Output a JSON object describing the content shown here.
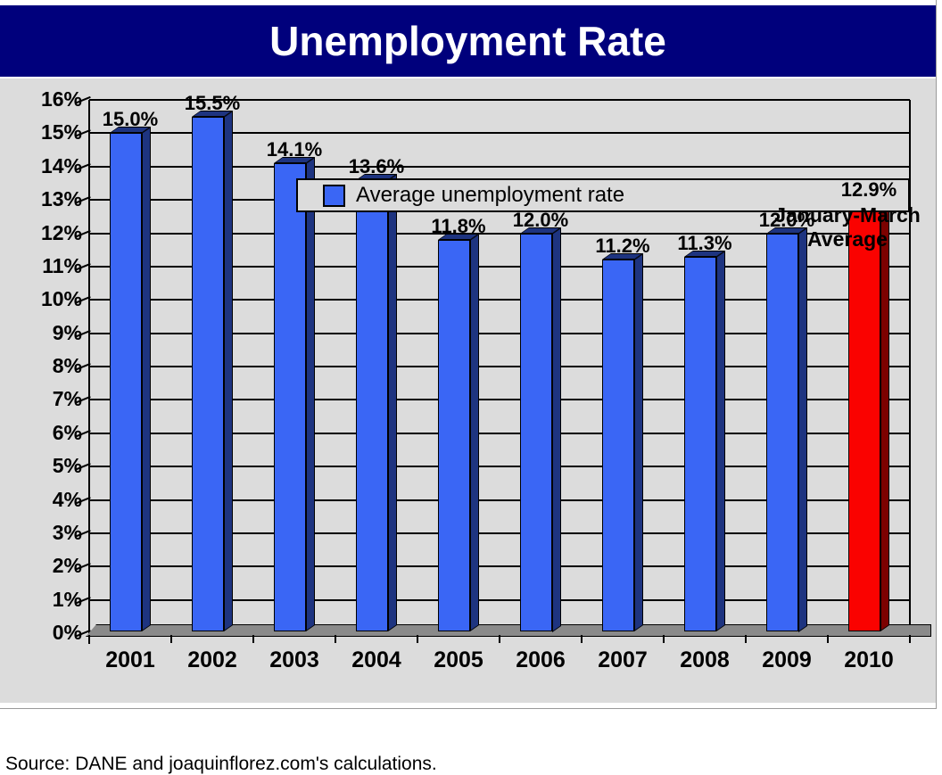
{
  "window": {
    "title": "Unemployment Rate"
  },
  "chart_data": {
    "type": "bar",
    "title": "Unemployment Rate",
    "categories": [
      "2001",
      "2002",
      "2003",
      "2004",
      "2005",
      "2006",
      "2007",
      "2008",
      "2009",
      "2010"
    ],
    "values": [
      15.0,
      15.5,
      14.1,
      13.6,
      11.8,
      12.0,
      11.2,
      11.3,
      12.0,
      12.9
    ],
    "value_labels": [
      "15.0%",
      "15.5%",
      "14.1%",
      "13.6%",
      "11.8%",
      "12.0%",
      "11.2%",
      "11.3%",
      "12.0%",
      "12.9%"
    ],
    "highlight_index": 9,
    "ylim": [
      0,
      16
    ],
    "ytick_step": 1,
    "yticks": [
      "0%",
      "1%",
      "2%",
      "3%",
      "4%",
      "5%",
      "6%",
      "7%",
      "8%",
      "9%",
      "10%",
      "11%",
      "12%",
      "13%",
      "14%",
      "15%",
      "16%"
    ],
    "grid": true,
    "legend_position": "top",
    "legend": {
      "label": "Average unemployment rate"
    },
    "annotation": {
      "line1": "January-March",
      "line2": "Average"
    },
    "source": "Source: DANE and joaquinflorez.com's calculations."
  },
  "colors": {
    "header_bg": "#00007c",
    "panel_bg": "#dcdcdc",
    "bar_front": "#3a66f5",
    "bar_side": "#1e3480",
    "highlight_front": "#fa0200",
    "highlight_side": "#7c0100",
    "floor": "#8a8a8a",
    "line": "#000000"
  }
}
